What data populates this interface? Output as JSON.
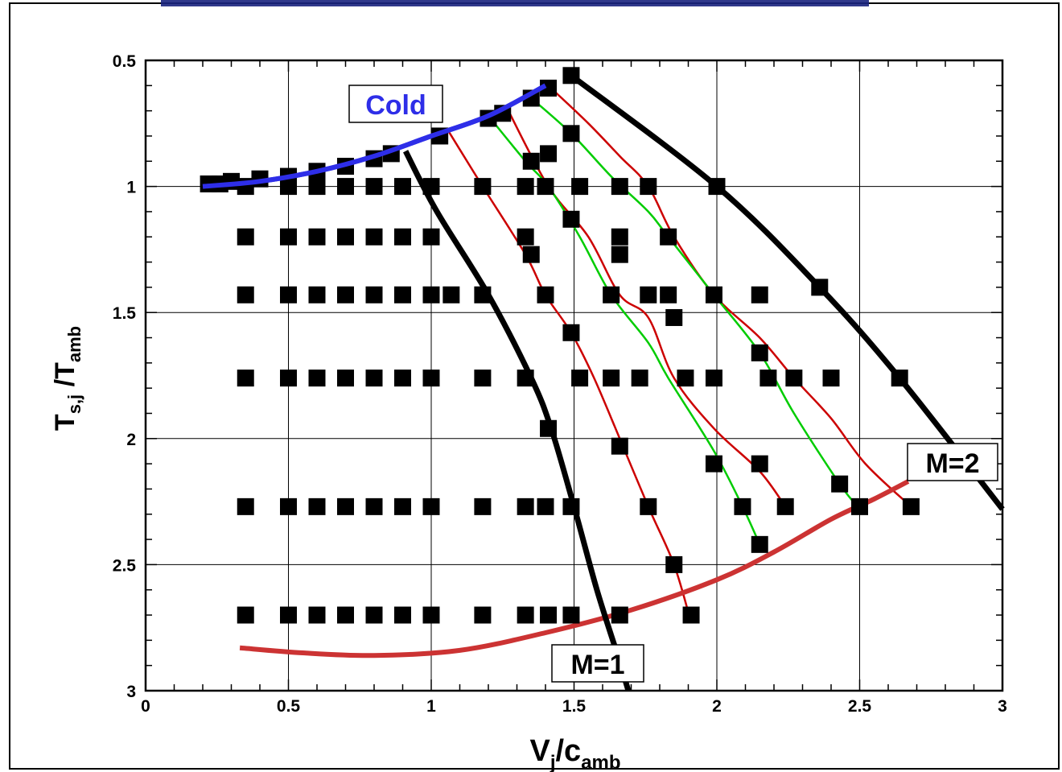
{
  "chart_data": {
    "type": "scatter",
    "title": "",
    "xlabel": "V_j/c_amb",
    "ylabel": "T_s,j /T_amb",
    "xlim": [
      0,
      3
    ],
    "ylim": [
      0.5,
      3
    ],
    "y_inverted": true,
    "grid": true,
    "x_ticks": [
      0,
      0.5,
      1,
      1.5,
      2,
      2.5,
      3
    ],
    "x_tick_labels": [
      "0",
      "0.5",
      "1",
      "1.5",
      "2",
      "2.5",
      "3"
    ],
    "y_ticks": [
      0.5,
      1,
      1.5,
      2,
      2.5,
      3
    ],
    "y_tick_labels": [
      "0.5",
      "1",
      "1.5",
      "2",
      "2.5",
      "3"
    ],
    "x_label_parts": {
      "base": "V",
      "sub1": "j",
      "mid": "/c",
      "sub2": "amb"
    },
    "y_label_parts": {
      "base1": "T",
      "sub1": "s,j",
      "mid": " /T",
      "sub2": "amb"
    },
    "annotations": {
      "cold": "Cold",
      "m1": "M=1",
      "m2": "M=2"
    },
    "colors": {
      "cold_line": "#2e2ee8",
      "cold_text": "#2e2ee8",
      "black": "#000000",
      "red": "#cc0000",
      "green": "#00cc00",
      "mach_curve": "#cc3333",
      "grid": "#000000"
    },
    "points": [
      {
        "x": 0.22,
        "y": 0.99
      },
      {
        "x": 0.26,
        "y": 0.99
      },
      {
        "x": 0.3,
        "y": 0.98
      },
      {
        "x": 0.4,
        "y": 0.97
      },
      {
        "x": 0.5,
        "y": 0.96
      },
      {
        "x": 0.6,
        "y": 0.94
      },
      {
        "x": 0.7,
        "y": 0.92
      },
      {
        "x": 0.8,
        "y": 0.89
      },
      {
        "x": 0.86,
        "y": 0.87
      },
      {
        "x": 1.03,
        "y": 0.8
      },
      {
        "x": 1.2,
        "y": 0.73
      },
      {
        "x": 1.25,
        "y": 0.71
      },
      {
        "x": 1.35,
        "y": 0.65
      },
      {
        "x": 1.41,
        "y": 0.61
      },
      {
        "x": 1.49,
        "y": 0.56
      },
      {
        "x": 1.35,
        "y": 0.9
      },
      {
        "x": 1.41,
        "y": 0.87
      },
      {
        "x": 1.49,
        "y": 0.79
      },
      {
        "x": 0.35,
        "y": 1.0
      },
      {
        "x": 0.5,
        "y": 1.0
      },
      {
        "x": 0.6,
        "y": 1.0
      },
      {
        "x": 0.7,
        "y": 1.0
      },
      {
        "x": 0.8,
        "y": 1.0
      },
      {
        "x": 0.9,
        "y": 1.0
      },
      {
        "x": 1.0,
        "y": 1.0
      },
      {
        "x": 1.18,
        "y": 1.0
      },
      {
        "x": 1.33,
        "y": 1.0
      },
      {
        "x": 1.4,
        "y": 1.0
      },
      {
        "x": 1.52,
        "y": 1.0
      },
      {
        "x": 1.66,
        "y": 1.0
      },
      {
        "x": 1.76,
        "y": 1.0
      },
      {
        "x": 2.0,
        "y": 1.0
      },
      {
        "x": 1.49,
        "y": 1.13
      },
      {
        "x": 0.35,
        "y": 1.2
      },
      {
        "x": 0.5,
        "y": 1.2
      },
      {
        "x": 0.6,
        "y": 1.2
      },
      {
        "x": 0.7,
        "y": 1.2
      },
      {
        "x": 0.8,
        "y": 1.2
      },
      {
        "x": 0.9,
        "y": 1.2
      },
      {
        "x": 1.0,
        "y": 1.2
      },
      {
        "x": 1.33,
        "y": 1.2
      },
      {
        "x": 1.66,
        "y": 1.2
      },
      {
        "x": 1.83,
        "y": 1.2
      },
      {
        "x": 1.35,
        "y": 1.27
      },
      {
        "x": 1.66,
        "y": 1.27
      },
      {
        "x": 0.35,
        "y": 1.43
      },
      {
        "x": 0.5,
        "y": 1.43
      },
      {
        "x": 0.6,
        "y": 1.43
      },
      {
        "x": 0.7,
        "y": 1.43
      },
      {
        "x": 0.8,
        "y": 1.43
      },
      {
        "x": 0.9,
        "y": 1.43
      },
      {
        "x": 1.0,
        "y": 1.43
      },
      {
        "x": 1.07,
        "y": 1.43
      },
      {
        "x": 1.18,
        "y": 1.43
      },
      {
        "x": 1.4,
        "y": 1.43
      },
      {
        "x": 1.63,
        "y": 1.43
      },
      {
        "x": 1.76,
        "y": 1.43
      },
      {
        "x": 1.83,
        "y": 1.43
      },
      {
        "x": 1.99,
        "y": 1.43
      },
      {
        "x": 2.15,
        "y": 1.43
      },
      {
        "x": 2.36,
        "y": 1.4
      },
      {
        "x": 1.85,
        "y": 1.52
      },
      {
        "x": 1.49,
        "y": 1.58
      },
      {
        "x": 2.15,
        "y": 1.66
      },
      {
        "x": 0.35,
        "y": 1.76
      },
      {
        "x": 0.5,
        "y": 1.76
      },
      {
        "x": 0.6,
        "y": 1.76
      },
      {
        "x": 0.7,
        "y": 1.76
      },
      {
        "x": 0.8,
        "y": 1.76
      },
      {
        "x": 0.9,
        "y": 1.76
      },
      {
        "x": 1.0,
        "y": 1.76
      },
      {
        "x": 1.18,
        "y": 1.76
      },
      {
        "x": 1.33,
        "y": 1.76
      },
      {
        "x": 1.52,
        "y": 1.76
      },
      {
        "x": 1.63,
        "y": 1.76
      },
      {
        "x": 1.73,
        "y": 1.76
      },
      {
        "x": 1.89,
        "y": 1.76
      },
      {
        "x": 1.99,
        "y": 1.76
      },
      {
        "x": 2.18,
        "y": 1.76
      },
      {
        "x": 2.27,
        "y": 1.76
      },
      {
        "x": 2.4,
        "y": 1.76
      },
      {
        "x": 2.64,
        "y": 1.76
      },
      {
        "x": 1.41,
        "y": 1.96
      },
      {
        "x": 1.66,
        "y": 2.03
      },
      {
        "x": 1.99,
        "y": 2.1
      },
      {
        "x": 2.15,
        "y": 2.1
      },
      {
        "x": 2.43,
        "y": 2.18
      },
      {
        "x": 0.35,
        "y": 2.27
      },
      {
        "x": 0.5,
        "y": 2.27
      },
      {
        "x": 0.6,
        "y": 2.27
      },
      {
        "x": 0.7,
        "y": 2.27
      },
      {
        "x": 0.8,
        "y": 2.27
      },
      {
        "x": 0.9,
        "y": 2.27
      },
      {
        "x": 1.0,
        "y": 2.27
      },
      {
        "x": 1.18,
        "y": 2.27
      },
      {
        "x": 1.33,
        "y": 2.27
      },
      {
        "x": 1.4,
        "y": 2.27
      },
      {
        "x": 1.49,
        "y": 2.27
      },
      {
        "x": 1.76,
        "y": 2.27
      },
      {
        "x": 2.09,
        "y": 2.27
      },
      {
        "x": 2.24,
        "y": 2.27
      },
      {
        "x": 2.5,
        "y": 2.27
      },
      {
        "x": 2.68,
        "y": 2.27
      },
      {
        "x": 2.15,
        "y": 2.42
      },
      {
        "x": 1.85,
        "y": 2.5
      },
      {
        "x": 0.35,
        "y": 2.7
      },
      {
        "x": 0.5,
        "y": 2.7
      },
      {
        "x": 0.6,
        "y": 2.7
      },
      {
        "x": 0.7,
        "y": 2.7
      },
      {
        "x": 0.8,
        "y": 2.7
      },
      {
        "x": 0.9,
        "y": 2.7
      },
      {
        "x": 1.0,
        "y": 2.7
      },
      {
        "x": 1.18,
        "y": 2.7
      },
      {
        "x": 1.33,
        "y": 2.7
      },
      {
        "x": 1.41,
        "y": 2.7
      },
      {
        "x": 1.49,
        "y": 2.7
      },
      {
        "x": 1.66,
        "y": 2.7
      },
      {
        "x": 1.91,
        "y": 2.7
      }
    ],
    "curves": [
      {
        "role": "cold",
        "color": "#2e2ee8",
        "width": 6,
        "x": [
          0.2,
          0.4,
          0.6,
          0.8,
          1.0,
          1.2,
          1.4
        ],
        "y": [
          1.0,
          0.98,
          0.94,
          0.88,
          0.8,
          0.72,
          0.6
        ]
      },
      {
        "role": "black-left",
        "color": "#000000",
        "width": 7,
        "x": [
          0.91,
          1.02,
          1.2,
          1.35,
          1.42,
          1.5,
          1.58,
          1.65,
          1.69
        ],
        "y": [
          0.86,
          1.1,
          1.43,
          1.76,
          1.96,
          2.27,
          2.6,
          2.85,
          3.0
        ]
      },
      {
        "role": "black-right",
        "color": "#000000",
        "width": 7,
        "x": [
          1.49,
          2.0,
          2.36,
          2.64,
          3.0
        ],
        "y": [
          0.56,
          1.0,
          1.4,
          1.76,
          2.28
        ]
      },
      {
        "role": "red-1",
        "color": "#cc0000",
        "width": 2.5,
        "x": [
          1.06,
          1.18,
          1.33,
          1.4,
          1.49,
          1.57,
          1.66,
          1.76,
          1.85,
          1.91
        ],
        "y": [
          0.78,
          1.0,
          1.27,
          1.43,
          1.58,
          1.76,
          2.0,
          2.27,
          2.5,
          2.73
        ]
      },
      {
        "role": "red-2",
        "color": "#cc0000",
        "width": 2.5,
        "x": [
          1.27,
          1.41,
          1.55,
          1.66,
          1.76,
          1.85,
          1.99,
          2.15,
          2.24
        ],
        "y": [
          0.7,
          1.0,
          1.2,
          1.43,
          1.52,
          1.76,
          1.96,
          2.13,
          2.27
        ]
      },
      {
        "role": "red-3",
        "color": "#cc0000",
        "width": 2.5,
        "x": [
          1.41,
          1.55,
          1.66,
          1.76,
          1.85,
          1.99,
          2.15,
          2.27,
          2.4,
          2.52,
          2.68
        ],
        "y": [
          0.6,
          0.75,
          0.88,
          1.0,
          1.2,
          1.43,
          1.6,
          1.76,
          1.92,
          2.1,
          2.27
        ]
      },
      {
        "role": "green-1",
        "color": "#00cc00",
        "width": 2.5,
        "x": [
          1.2,
          1.33,
          1.41,
          1.52,
          1.63,
          1.76,
          1.83,
          1.99,
          2.09,
          2.15
        ],
        "y": [
          0.72,
          0.9,
          1.0,
          1.2,
          1.43,
          1.62,
          1.76,
          2.05,
          2.27,
          2.42
        ]
      },
      {
        "role": "green-2",
        "color": "#00cc00",
        "width": 2.5,
        "x": [
          1.34,
          1.49,
          1.63,
          1.76,
          1.83,
          1.99,
          2.15,
          2.27,
          2.43,
          2.5
        ],
        "y": [
          0.64,
          0.79,
          0.96,
          1.1,
          1.2,
          1.43,
          1.66,
          1.9,
          2.18,
          2.28
        ]
      },
      {
        "role": "mach",
        "color": "#cc3333",
        "width": 6,
        "x": [
          0.33,
          0.55,
          0.8,
          1.1,
          1.4,
          1.7,
          2.0,
          2.2,
          2.4,
          2.55,
          2.67
        ],
        "y": [
          2.83,
          2.85,
          2.86,
          2.84,
          2.77,
          2.68,
          2.56,
          2.45,
          2.32,
          2.24,
          2.17
        ]
      }
    ]
  }
}
